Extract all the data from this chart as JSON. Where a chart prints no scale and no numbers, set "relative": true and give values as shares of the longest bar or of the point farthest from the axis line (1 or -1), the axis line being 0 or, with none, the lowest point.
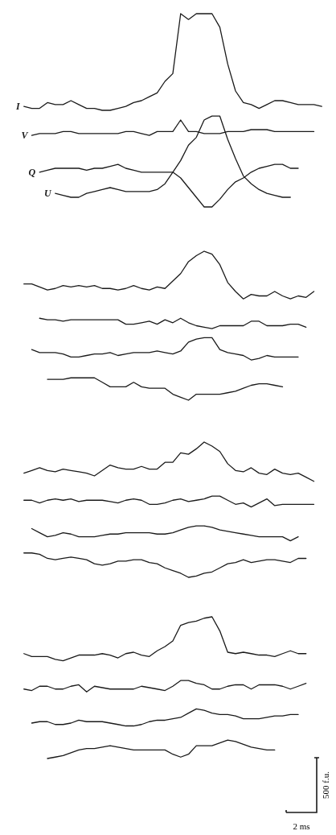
{
  "chart_data": [
    {
      "type": "line",
      "relative": true,
      "categories": [
        null,
        null,
        null,
        null,
        null,
        null,
        null,
        null,
        null,
        null,
        null,
        null,
        null,
        null,
        null,
        null,
        null,
        null,
        null,
        null,
        null,
        null,
        null,
        null,
        null,
        null,
        null,
        null,
        null,
        null,
        null,
        null,
        null,
        null,
        null,
        null,
        null,
        null,
        null
      ],
      "series": [
        {
          "name": "I",
          "color": "#1a1a1a",
          "values": [
            0.52,
            0.51,
            0.51,
            0.54,
            0.53,
            0.53,
            0.55,
            0.53,
            0.51,
            0.51,
            0.5,
            0.5,
            0.51,
            0.52,
            0.54,
            0.55,
            0.57,
            0.59,
            0.65,
            0.69,
            1,
            0.97,
            1,
            1,
            1,
            0.93,
            0.74,
            0.6,
            0.54,
            0.53,
            0.51,
            0.53,
            0.55,
            0.55,
            0.54,
            0.53,
            0.53,
            0.53,
            0.52
          ]
        },
        {
          "name": "V",
          "color": "#1a1a1a",
          "values": [
            null,
            0.37,
            0.38,
            0.38,
            0.38,
            0.39,
            0.39,
            0.38,
            0.38,
            0.38,
            0.38,
            0.38,
            0.38,
            0.39,
            0.39,
            0.38,
            0.37,
            0.39,
            0.39,
            0.39,
            0.45,
            0.39,
            0.39,
            0.38,
            0.38,
            0.38,
            0.39,
            0.39,
            0.39,
            0.4,
            0.4,
            0.4,
            0.39,
            0.39,
            0.39,
            0.39,
            0.39,
            0.39,
            null
          ]
        },
        {
          "name": "Q",
          "color": "#1a1a1a",
          "values": [
            null,
            null,
            0.18,
            0.19,
            0.2,
            0.2,
            0.2,
            0.2,
            0.19,
            0.2,
            0.2,
            0.21,
            0.22,
            0.2,
            0.19,
            0.18,
            0.18,
            0.18,
            0.18,
            0.18,
            0.15,
            0.1,
            0.05,
            0,
            0,
            0.04,
            0.09,
            0.13,
            0.15,
            0.18,
            0.2,
            0.21,
            0.22,
            0.22,
            0.2,
            0.2,
            null,
            null,
            null
          ]
        },
        {
          "name": "U",
          "color": "#1a1a1a",
          "values": [
            null,
            null,
            null,
            null,
            0.07,
            0.06,
            0.05,
            0.05,
            0.07,
            0.08,
            0.09,
            0.1,
            0.09,
            0.08,
            0.08,
            0.08,
            0.08,
            0.09,
            0.12,
            0.18,
            0.24,
            0.32,
            0.36,
            0.45,
            0.47,
            0.47,
            0.35,
            0.25,
            0.16,
            0.12,
            0.09,
            0.07,
            0.06,
            0.05,
            0.05,
            null,
            null,
            null,
            null
          ]
        }
      ]
    },
    {
      "type": "line",
      "relative": true,
      "categories": [
        null,
        null,
        null,
        null,
        null,
        null,
        null,
        null,
        null,
        null,
        null,
        null,
        null,
        null,
        null,
        null,
        null,
        null,
        null,
        null,
        null,
        null,
        null,
        null,
        null,
        null,
        null,
        null,
        null,
        null,
        null,
        null,
        null,
        null,
        null,
        null,
        null,
        null,
        null
      ],
      "series": [
        {
          "color": "#1a1a1a",
          "values": [
            0.78,
            0.78,
            0.76,
            0.74,
            0.75,
            0.77,
            0.76,
            0.77,
            0.76,
            0.77,
            0.75,
            0.75,
            0.74,
            0.75,
            0.77,
            0.75,
            0.74,
            0.76,
            0.75,
            0.8,
            0.85,
            0.93,
            0.97,
            1,
            0.98,
            0.91,
            0.79,
            0.73,
            0.68,
            0.71,
            0.7,
            0.7,
            0.73,
            0.7,
            0.68,
            0.7,
            0.69,
            0.73,
            null
          ]
        },
        {
          "color": "#1a1a1a",
          "values": [
            null,
            null,
            0.55,
            0.54,
            0.54,
            0.53,
            0.54,
            0.54,
            0.54,
            0.54,
            0.54,
            0.54,
            0.54,
            0.51,
            0.51,
            0.52,
            0.53,
            0.51,
            0.54,
            0.52,
            0.55,
            0.52,
            0.5,
            0.49,
            0.48,
            0.5,
            0.5,
            0.5,
            0.5,
            0.53,
            0.53,
            0.5,
            0.5,
            0.5,
            0.51,
            0.51,
            0.49,
            null,
            null
          ]
        },
        {
          "color": "#1a1a1a",
          "values": [
            null,
            0.34,
            0.32,
            0.32,
            0.32,
            0.31,
            0.29,
            0.29,
            0.3,
            0.31,
            0.31,
            0.32,
            0.3,
            0.31,
            0.32,
            0.32,
            0.32,
            0.33,
            0.32,
            0.31,
            0.33,
            0.39,
            0.41,
            0.42,
            0.42,
            0.34,
            0.32,
            0.31,
            0.3,
            0.27,
            0.28,
            0.3,
            0.29,
            0.29,
            0.29,
            0.29,
            null,
            null,
            null
          ]
        },
        {
          "color": "#1a1a1a",
          "values": [
            null,
            null,
            null,
            0.14,
            0.14,
            0.14,
            0.15,
            0.15,
            0.15,
            0.15,
            0.12,
            0.09,
            0.09,
            0.09,
            0.12,
            0.09,
            0.08,
            0.08,
            0.08,
            0.04,
            0.02,
            0,
            0.04,
            0.04,
            0.04,
            0.04,
            0.05,
            0.06,
            0.08,
            0.1,
            0.11,
            0.11,
            0.1,
            0.09,
            null,
            null,
            null,
            null,
            null
          ]
        }
      ]
    },
    {
      "type": "line",
      "relative": true,
      "categories": [
        null,
        null,
        null,
        null,
        null,
        null,
        null,
        null,
        null,
        null,
        null,
        null,
        null,
        null,
        null,
        null,
        null,
        null,
        null,
        null,
        null,
        null,
        null,
        null,
        null,
        null,
        null,
        null,
        null,
        null,
        null,
        null,
        null,
        null,
        null,
        null,
        null,
        null,
        null
      ],
      "series": [
        {
          "color": "#1a1a1a",
          "values": [
            0.77,
            0.79,
            0.81,
            0.79,
            0.78,
            0.8,
            0.79,
            0.78,
            0.77,
            0.75,
            0.79,
            0.83,
            0.81,
            0.8,
            0.8,
            0.82,
            0.8,
            0.8,
            0.85,
            0.85,
            0.92,
            0.91,
            0.95,
            1,
            0.97,
            0.93,
            0.84,
            0.79,
            0.78,
            0.81,
            0.77,
            0.76,
            0.8,
            0.77,
            0.76,
            0.77,
            0.74,
            0.71,
            null
          ]
        },
        {
          "color": "#1a1a1a",
          "values": [
            0.57,
            0.57,
            0.55,
            0.57,
            0.58,
            0.57,
            0.58,
            0.56,
            0.57,
            0.57,
            0.57,
            0.56,
            0.55,
            0.57,
            0.58,
            0.57,
            0.54,
            0.54,
            0.55,
            0.57,
            0.58,
            0.56,
            0.57,
            0.58,
            0.6,
            0.6,
            0.57,
            0.54,
            0.55,
            0.52,
            0.55,
            0.58,
            0.53,
            0.54,
            0.54,
            0.54,
            0.54,
            0.54,
            null
          ]
        },
        {
          "color": "#1a1a1a",
          "values": [
            null,
            0.36,
            0.33,
            0.3,
            0.31,
            0.33,
            0.32,
            0.3,
            0.3,
            0.3,
            0.31,
            0.32,
            0.32,
            0.33,
            0.33,
            0.33,
            0.33,
            0.32,
            0.32,
            0.33,
            0.35,
            0.37,
            0.38,
            0.38,
            0.37,
            0.35,
            0.34,
            0.33,
            0.32,
            0.31,
            0.3,
            0.3,
            0.3,
            0.3,
            0.27,
            0.3,
            null,
            null,
            null
          ]
        },
        {
          "color": "#1a1a1a",
          "values": [
            0.18,
            0.18,
            0.17,
            0.14,
            0.13,
            0.14,
            0.15,
            0.14,
            0.13,
            0.1,
            0.09,
            0.1,
            0.12,
            0.12,
            0.13,
            0.13,
            0.11,
            0.1,
            0.07,
            0.05,
            0.03,
            0,
            0.01,
            0.03,
            0.04,
            0.07,
            0.1,
            0.11,
            0.13,
            0.11,
            0.12,
            0.13,
            0.13,
            0.12,
            0.11,
            0.14,
            0.14,
            null,
            null
          ]
        }
      ]
    },
    {
      "type": "line",
      "relative": true,
      "annotations": [
        "500 f.u.",
        "2 ms"
      ],
      "categories": [
        null,
        null,
        null,
        null,
        null,
        null,
        null,
        null,
        null,
        null,
        null,
        null,
        null,
        null,
        null,
        null,
        null,
        null,
        null,
        null,
        null,
        null,
        null,
        null,
        null,
        null,
        null,
        null,
        null,
        null,
        null,
        null,
        null,
        null,
        null,
        null,
        null,
        null,
        null
      ],
      "series": [
        {
          "color": "#1a1a1a",
          "values": [
            0.74,
            0.72,
            0.72,
            0.72,
            0.7,
            0.69,
            0.71,
            0.73,
            0.73,
            0.73,
            0.74,
            0.73,
            0.71,
            0.74,
            0.75,
            0.73,
            0.72,
            0.76,
            0.79,
            0.83,
            0.94,
            0.96,
            0.97,
            0.99,
            1,
            0.9,
            0.75,
            0.74,
            0.75,
            0.74,
            0.73,
            0.73,
            0.72,
            0.74,
            0.76,
            0.74,
            0.74,
            null,
            null
          ]
        },
        {
          "color": "#1a1a1a",
          "values": [
            0.49,
            0.48,
            0.51,
            0.51,
            0.49,
            0.49,
            0.51,
            0.52,
            0.47,
            0.51,
            0.5,
            0.49,
            0.49,
            0.49,
            0.49,
            0.51,
            0.5,
            0.49,
            0.48,
            0.51,
            0.55,
            0.55,
            0.53,
            0.52,
            0.49,
            0.49,
            0.51,
            0.52,
            0.52,
            0.49,
            0.52,
            0.52,
            0.52,
            0.51,
            0.49,
            0.51,
            0.53,
            null,
            null
          ]
        },
        {
          "color": "#1a1a1a",
          "values": [
            null,
            0.25,
            0.26,
            0.26,
            0.24,
            0.24,
            0.25,
            0.27,
            0.26,
            0.26,
            0.26,
            0.25,
            0.24,
            0.23,
            0.23,
            0.24,
            0.26,
            0.27,
            0.27,
            0.28,
            0.29,
            0.32,
            0.35,
            0.34,
            0.32,
            0.31,
            0.31,
            0.3,
            0.28,
            0.28,
            0.28,
            0.29,
            0.3,
            0.3,
            0.31,
            0.31,
            null,
            null,
            null
          ]
        },
        {
          "color": "#1a1a1a",
          "values": [
            null,
            null,
            null,
            0,
            0.01,
            0.02,
            0.04,
            0.06,
            0.07,
            0.07,
            0.08,
            0.09,
            0.08,
            0.07,
            0.06,
            0.06,
            0.06,
            0.06,
            0.06,
            0.03,
            0.01,
            0.03,
            0.09,
            0.09,
            0.09,
            0.11,
            0.13,
            0.12,
            0.1,
            0.08,
            0.07,
            0.06,
            0.06,
            null,
            null,
            null,
            null,
            null,
            null
          ]
        }
      ]
    }
  ]
}
